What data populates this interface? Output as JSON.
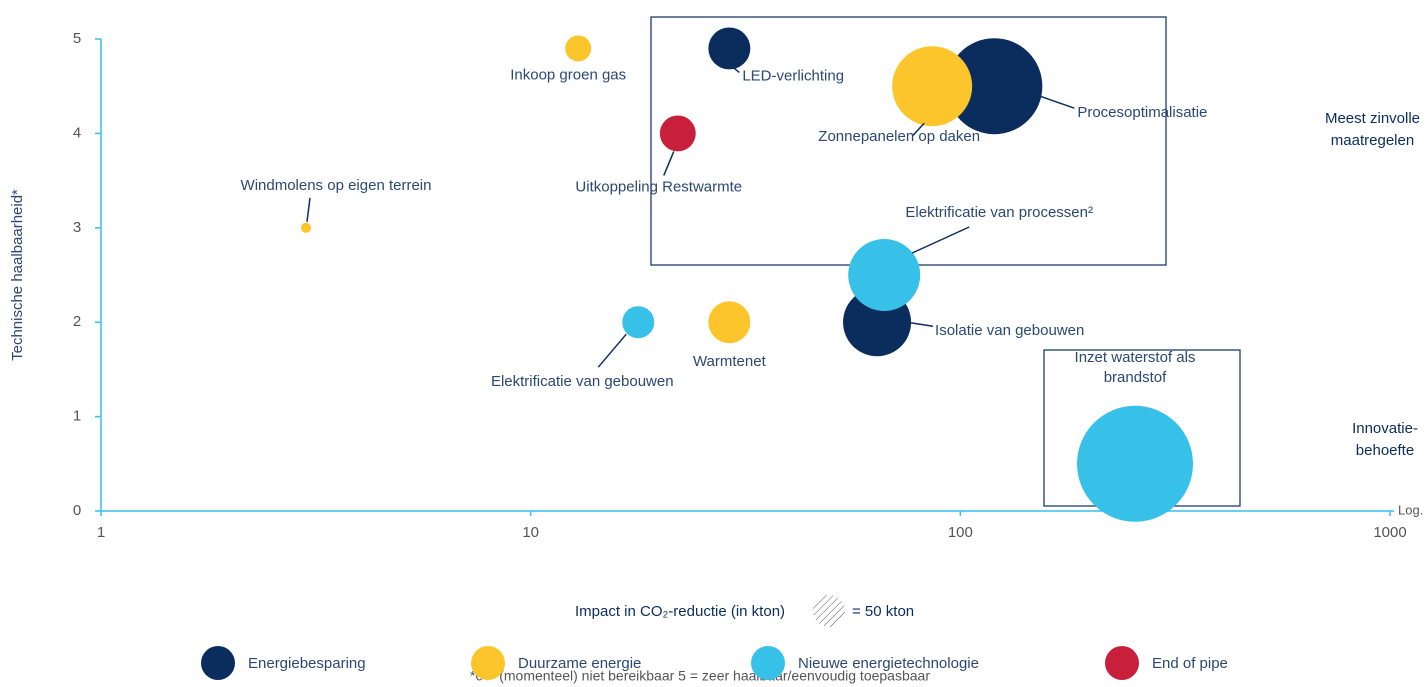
{
  "chart_data": {
    "type": "bubble",
    "y_axis_label": "Technische haalbaarheid*",
    "x_axis_label": "Impact in CO₂-reductie (in kton)",
    "x_scale_label": "Log.",
    "log_x": true,
    "xlim": [
      1,
      1000
    ],
    "xticks": [
      1,
      10,
      100,
      1000
    ],
    "ylim": [
      0,
      5
    ],
    "yticks": [
      0,
      1,
      2,
      3,
      4,
      5
    ],
    "size_key": 50,
    "size_key_label": "= 50 kton",
    "zone_labels": [
      "Meest zinvolle maatregelen",
      "Innovatie-behoefte"
    ],
    "footnote": "*0 = (momenteel) niet bereikbaar  5 = zeer haalbaar/eenvoudig toepasbaar",
    "series": [
      {
        "name": "Energiebesparing",
        "color": "#0b2d5e",
        "labels": [
          "LED-verlichting",
          "Procesoptimalisatie",
          "Isolatie van gebouwen"
        ],
        "x": [
          29,
          120,
          64
        ],
        "values": [
          4.9,
          4.5,
          2
        ],
        "sizes": [
          86,
          450,
          226
        ]
      },
      {
        "name": "Duurzame energie",
        "color": "#fdc52c",
        "labels": [
          "Inkoop groen gas",
          "Zonnepanelen op daken",
          "Windmolens op eigen terrein",
          "Warmtenet"
        ],
        "x": [
          12.9,
          86,
          3,
          29
        ],
        "values": [
          4.9,
          4.5,
          3,
          2
        ],
        "sizes": [
          33,
          312,
          5,
          86
        ]
      },
      {
        "name": "Nieuwe energietechnologie",
        "color": "#37c1e9",
        "labels": [
          "Elektrificatie van processen²",
          "Elektrificatie van gebouwen",
          "Inzet waterstof als brandstof"
        ],
        "x": [
          66.5,
          17.8,
          255
        ],
        "values": [
          2.5,
          2,
          0.5
        ],
        "sizes": [
          253,
          50,
          657
        ]
      },
      {
        "name": "End of pipe",
        "color": "#c8203c",
        "labels": [
          "Uitkoppeling Restwarmte"
        ],
        "x": [
          22
        ],
        "values": [
          4
        ],
        "sizes": [
          63
        ]
      }
    ]
  }
}
